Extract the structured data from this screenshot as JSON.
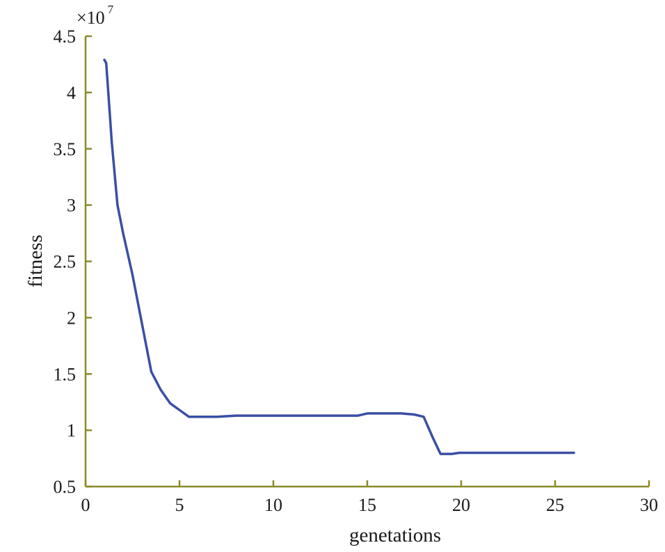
{
  "chart_data": {
    "type": "line",
    "title": "",
    "xlabel": "genetations",
    "ylabel": "fitness",
    "y_multiplier": {
      "base": "×10",
      "exponent": "7"
    },
    "xlim": [
      0,
      30
    ],
    "ylim": [
      0.5,
      4.5
    ],
    "xticks": [
      0,
      5,
      10,
      15,
      20,
      25,
      30
    ],
    "yticks": [
      0.5,
      1,
      1.5,
      2,
      2.5,
      3,
      3.5,
      4,
      4.5
    ],
    "xtick_labels": [
      "0",
      "5",
      "10",
      "15",
      "20",
      "25",
      "30"
    ],
    "ytick_labels": [
      "0.5",
      "1",
      "1.5",
      "2",
      "2.5",
      "3",
      "3.5",
      "4",
      "4.5"
    ],
    "grid": false,
    "series": [
      {
        "color": "#3a4fa3",
        "x": [
          1,
          1.1,
          1.4,
          1.7,
          2,
          2.5,
          3,
          3.5,
          4,
          4.5,
          5,
          5.5,
          6,
          7,
          8,
          9,
          10,
          11,
          12,
          13,
          14,
          14.5,
          15,
          16,
          16.8,
          17.5,
          18,
          18.5,
          18.9,
          19.5,
          19.9,
          21,
          22,
          23,
          24,
          25,
          26
        ],
        "y": [
          4.29,
          4.26,
          3.55,
          3.0,
          2.75,
          2.38,
          1.95,
          1.52,
          1.36,
          1.24,
          1.18,
          1.12,
          1.12,
          1.12,
          1.13,
          1.13,
          1.13,
          1.13,
          1.13,
          1.13,
          1.13,
          1.13,
          1.15,
          1.15,
          1.15,
          1.14,
          1.12,
          0.93,
          0.79,
          0.79,
          0.8,
          0.8,
          0.8,
          0.8,
          0.8,
          0.8,
          0.8
        ]
      }
    ]
  },
  "colors": {
    "axis": "#8a8a2a",
    "line": "#3a4fa3",
    "text": "#1a1a1a"
  }
}
